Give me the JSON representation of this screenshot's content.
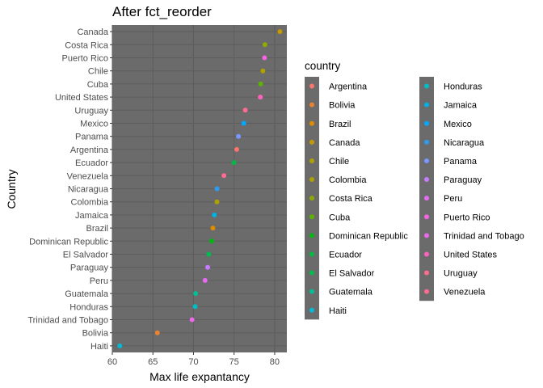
{
  "chart_data": {
    "type": "scatter",
    "title": "After fct_reorder",
    "xlabel": "Max life expantancy",
    "ylabel": "Country",
    "xlim": [
      60,
      81.5
    ],
    "xticks": [
      60,
      65,
      70,
      75,
      80
    ],
    "grid": true,
    "legend_position": "right",
    "legend_title": "country",
    "panel_color": "#6b6b6b",
    "gridline_color": "#5d5d5d",
    "points": [
      {
        "country": "Canada",
        "value": 80.65,
        "color": "#C49A00"
      },
      {
        "country": "Costa Rica",
        "value": 78.8,
        "color": "#8FAA00"
      },
      {
        "country": "Puerto Rico",
        "value": 78.75,
        "color": "#F564E3"
      },
      {
        "country": "Chile",
        "value": 78.55,
        "color": "#AEA200"
      },
      {
        "country": "Cuba",
        "value": 78.27,
        "color": "#5EB300"
      },
      {
        "country": "United States",
        "value": 78.24,
        "color": "#FF62BC"
      },
      {
        "country": "Uruguay",
        "value": 76.38,
        "color": "#FF6C91"
      },
      {
        "country": "Mexico",
        "value": 76.2,
        "color": "#00A9FF"
      },
      {
        "country": "Panama",
        "value": 75.54,
        "color": "#7997FF"
      },
      {
        "country": "Argentina",
        "value": 75.32,
        "color": "#F8766D"
      },
      {
        "country": "Ecuador",
        "value": 74.99,
        "color": "#00BA42"
      },
      {
        "country": "Venezuela",
        "value": 73.75,
        "color": "#FF6C91"
      },
      {
        "country": "Nicaragua",
        "value": 72.9,
        "color": "#2C9BF0"
      },
      {
        "country": "Colombia",
        "value": 72.89,
        "color": "#AEA200"
      },
      {
        "country": "Jamaica",
        "value": 72.57,
        "color": "#00B1E3"
      },
      {
        "country": "Brazil",
        "value": 72.39,
        "color": "#DE8C00"
      },
      {
        "country": "Dominican Republic",
        "value": 72.24,
        "color": "#00B811"
      },
      {
        "country": "El Salvador",
        "value": 71.88,
        "color": "#00BB4E"
      },
      {
        "country": "Paraguay",
        "value": 71.75,
        "color": "#C77CFF"
      },
      {
        "country": "Peru",
        "value": 71.42,
        "color": "#E76BF3"
      },
      {
        "country": "Guatemala",
        "value": 70.26,
        "color": "#00BF96"
      },
      {
        "country": "Honduras",
        "value": 70.2,
        "color": "#00BFC4"
      },
      {
        "country": "Trinidad and Tobago",
        "value": 69.82,
        "color": "#ED68ED"
      },
      {
        "country": "Bolivia",
        "value": 65.55,
        "color": "#EA8331"
      },
      {
        "country": "Haiti",
        "value": 60.92,
        "color": "#00BCD8"
      }
    ],
    "legend_entries": [
      {
        "label": "Argentina",
        "color": "#F8766D"
      },
      {
        "label": "Bolivia",
        "color": "#EA8331"
      },
      {
        "label": "Brazil",
        "color": "#DE8C00"
      },
      {
        "label": "Canada",
        "color": "#C49A00"
      },
      {
        "label": "Chile",
        "color": "#AEA200"
      },
      {
        "label": "Colombia",
        "color": "#AEA200"
      },
      {
        "label": "Costa Rica",
        "color": "#8FAA00"
      },
      {
        "label": "Cuba",
        "color": "#5EB300"
      },
      {
        "label": "Dominican Republic",
        "color": "#00B811"
      },
      {
        "label": "Ecuador",
        "color": "#00BA42"
      },
      {
        "label": "El Salvador",
        "color": "#00BB4E"
      },
      {
        "label": "Guatemala",
        "color": "#00BF96"
      },
      {
        "label": "Haiti",
        "color": "#00BCD8"
      },
      {
        "label": "Honduras",
        "color": "#00BFC4"
      },
      {
        "label": "Jamaica",
        "color": "#00B1E3"
      },
      {
        "label": "Mexico",
        "color": "#00A9FF"
      },
      {
        "label": "Nicaragua",
        "color": "#2C9BF0"
      },
      {
        "label": "Panama",
        "color": "#7997FF"
      },
      {
        "label": "Paraguay",
        "color": "#C77CFF"
      },
      {
        "label": "Peru",
        "color": "#E76BF3"
      },
      {
        "label": "Puerto Rico",
        "color": "#F564E3"
      },
      {
        "label": "Trinidad and Tobago",
        "color": "#ED68ED"
      },
      {
        "label": "United States",
        "color": "#FF62BC"
      },
      {
        "label": "Uruguay",
        "color": "#FF6C91"
      },
      {
        "label": "Venezuela",
        "color": "#FF6C91"
      }
    ]
  }
}
